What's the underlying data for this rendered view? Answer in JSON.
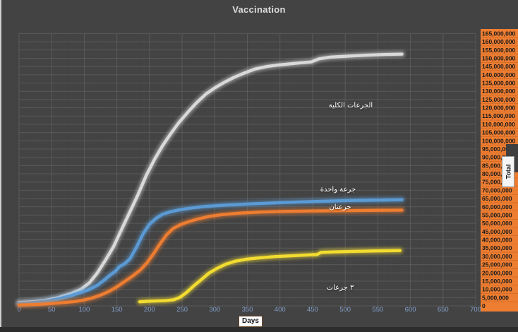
{
  "header": {
    "title": "Vaccination"
  },
  "colors": {
    "background": "#434343",
    "grid_major": "#5d5d5d",
    "grid_minor": "#4b4b4b",
    "x_tick_label": "#84a0cc",
    "y_axis_strip": "#ed7d31",
    "y_axis_strip_separator": "#b65c1e",
    "y_axis_text": "#1a1a1a",
    "title_text": "#dcdcdc"
  },
  "chart_data": {
    "type": "line",
    "title": "Vaccination",
    "xlabel": "Days",
    "ylabel": "Total",
    "xlim": [
      0,
      700
    ],
    "ylim": [
      0,
      165000000
    ],
    "grid": "on",
    "legend": "inline-annotations",
    "x_ticks": [
      0,
      50,
      100,
      150,
      200,
      250,
      300,
      350,
      400,
      450,
      500,
      550,
      600,
      650,
      700
    ],
    "y_ticks": [
      0,
      5000000,
      10000000,
      15000000,
      20000000,
      25000000,
      30000000,
      35000000,
      40000000,
      45000000,
      50000000,
      55000000,
      60000000,
      65000000,
      70000000,
      75000000,
      80000000,
      85000000,
      90000000,
      95000000,
      100000000,
      105000000,
      110000000,
      115000000,
      120000000,
      125000000,
      130000000,
      135000000,
      140000000,
      145000000,
      150000000,
      155000000,
      160000000,
      165000000
    ],
    "y_tick_labels": [
      "0",
      "5,000,000",
      "10,000,000",
      "15,000,000",
      "20,000,000",
      "25,000,000",
      "30,000,000",
      "35,000,000",
      "40,000,000",
      "45,000,000",
      "50,000,000",
      "55,000,000",
      "60,000,000",
      "65,000,000",
      "70,000,000",
      "75,000,000",
      "80,000,000",
      "85,000,000",
      "90,000,000",
      "95,000,000",
      "100,000,000",
      "105,000,000",
      "110,000,000",
      "115,000,000",
      "120,000,000",
      "125,000,000",
      "130,000,000",
      "135,000,000",
      "140,000,000",
      "145,000,000",
      "150,000,000",
      "155,000,000",
      "160,000,000",
      "165,000,000"
    ],
    "series": [
      {
        "name": "الجرعات الكلية",
        "color": "#d9d9d9",
        "points": [
          [
            0,
            2000000
          ],
          [
            20,
            2500000
          ],
          [
            40,
            3400000
          ],
          [
            60,
            5000000
          ],
          [
            80,
            7500000
          ],
          [
            95,
            10000000
          ],
          [
            108,
            14000000
          ],
          [
            120,
            20000000
          ],
          [
            133,
            28000000
          ],
          [
            145,
            36000000
          ],
          [
            158,
            47000000
          ],
          [
            170,
            57000000
          ],
          [
            182,
            67000000
          ],
          [
            195,
            79000000
          ],
          [
            208,
            89000000
          ],
          [
            220,
            97000000
          ],
          [
            232,
            104000000
          ],
          [
            245,
            111000000
          ],
          [
            258,
            117000000
          ],
          [
            272,
            123000000
          ],
          [
            287,
            128500000
          ],
          [
            300,
            132000000
          ],
          [
            315,
            135500000
          ],
          [
            330,
            138500000
          ],
          [
            345,
            141000000
          ],
          [
            362,
            143500000
          ],
          [
            380,
            145000000
          ],
          [
            400,
            146000000
          ],
          [
            425,
            147000000
          ],
          [
            448,
            147800000
          ],
          [
            460,
            149700000
          ],
          [
            478,
            150700000
          ],
          [
            500,
            151200000
          ],
          [
            530,
            151800000
          ],
          [
            560,
            152300000
          ],
          [
            587,
            152500000
          ]
        ]
      },
      {
        "name": "جرعة واحدة",
        "color": "#5b9bd5",
        "points": [
          [
            0,
            1400000
          ],
          [
            20,
            1900000
          ],
          [
            40,
            2700000
          ],
          [
            60,
            4200000
          ],
          [
            80,
            6300000
          ],
          [
            95,
            8200000
          ],
          [
            108,
            10000000
          ],
          [
            120,
            12500000
          ],
          [
            130,
            15500000
          ],
          [
            140,
            18800000
          ],
          [
            148,
            21000000
          ],
          [
            154,
            23800000
          ],
          [
            162,
            25500000
          ],
          [
            170,
            28500000
          ],
          [
            180,
            35500000
          ],
          [
            190,
            43500000
          ],
          [
            200,
            49500000
          ],
          [
            210,
            53000000
          ],
          [
            220,
            55500000
          ],
          [
            232,
            57000000
          ],
          [
            246,
            58200000
          ],
          [
            262,
            59200000
          ],
          [
            285,
            60200000
          ],
          [
            315,
            61000000
          ],
          [
            355,
            61800000
          ],
          [
            400,
            62500000
          ],
          [
            450,
            63200000
          ],
          [
            505,
            63800000
          ],
          [
            555,
            64100000
          ],
          [
            587,
            64300000
          ]
        ]
      },
      {
        "name": "جرعتان",
        "color": "#ed7d31",
        "points": [
          [
            0,
            500000
          ],
          [
            30,
            900000
          ],
          [
            60,
            1700000
          ],
          [
            85,
            2600000
          ],
          [
            100,
            3600000
          ],
          [
            112,
            4800000
          ],
          [
            125,
            6500000
          ],
          [
            138,
            8800000
          ],
          [
            150,
            11500000
          ],
          [
            162,
            14800000
          ],
          [
            174,
            18000000
          ],
          [
            186,
            21800000
          ],
          [
            196,
            26000000
          ],
          [
            206,
            31500000
          ],
          [
            216,
            37500000
          ],
          [
            226,
            43000000
          ],
          [
            236,
            46800000
          ],
          [
            248,
            49300000
          ],
          [
            260,
            51000000
          ],
          [
            275,
            52700000
          ],
          [
            292,
            54200000
          ],
          [
            312,
            55300000
          ],
          [
            338,
            56200000
          ],
          [
            368,
            56800000
          ],
          [
            405,
            57200000
          ],
          [
            450,
            57500000
          ],
          [
            500,
            57700000
          ],
          [
            550,
            57900000
          ],
          [
            587,
            58000000
          ]
        ]
      },
      {
        "name": "٣ جرعات",
        "color": "#f2dc30",
        "points": [
          [
            185,
            2500000
          ],
          [
            198,
            2800000
          ],
          [
            212,
            3000000
          ],
          [
            225,
            3200000
          ],
          [
            237,
            3700000
          ],
          [
            247,
            5200000
          ],
          [
            257,
            8200000
          ],
          [
            267,
            11800000
          ],
          [
            279,
            15800000
          ],
          [
            291,
            19800000
          ],
          [
            304,
            22800000
          ],
          [
            317,
            25300000
          ],
          [
            331,
            27000000
          ],
          [
            349,
            28300000
          ],
          [
            369,
            29100000
          ],
          [
            394,
            29900000
          ],
          [
            420,
            30400000
          ],
          [
            444,
            30900000
          ],
          [
            457,
            31100000
          ],
          [
            463,
            32400000
          ],
          [
            482,
            32700000
          ],
          [
            512,
            33000000
          ],
          [
            547,
            33300000
          ],
          [
            584,
            33500000
          ]
        ]
      }
    ]
  }
}
